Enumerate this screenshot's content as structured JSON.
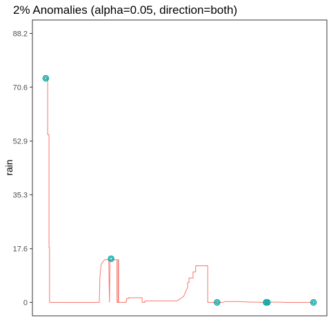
{
  "chart_data": {
    "type": "line",
    "title": "2% Anomalies (alpha=0.05, direction=both)",
    "xlabel": "",
    "ylabel": "rain",
    "ylim": [
      -4.4,
      92.6
    ],
    "xlim": [
      -0.05,
      1.05
    ],
    "yticks": [
      0,
      17.6,
      35.3,
      52.9,
      70.6,
      88.2
    ],
    "ytick_labels": [
      "0",
      "17.6",
      "35.3",
      "52.9",
      "70.6",
      "88.2"
    ],
    "grid": false,
    "legend": "none",
    "series": [
      {
        "color": "#f8766d",
        "x": [
          0.0,
          0.007,
          0.007,
          0.012,
          0.012,
          0.014,
          0.014,
          0.018,
          0.018,
          0.02,
          0.02,
          0.2,
          0.202,
          0.204,
          0.206,
          0.21,
          0.215,
          0.22,
          0.235,
          0.238,
          0.24,
          0.242,
          0.25,
          0.262,
          0.266,
          0.266,
          0.27,
          0.27,
          0.272,
          0.272,
          0.285,
          0.3,
          0.3,
          0.302,
          0.302,
          0.31,
          0.31,
          0.36,
          0.36,
          0.37,
          0.37,
          0.45,
          0.45,
          0.49,
          0.5,
          0.515,
          0.52,
          0.525,
          0.53,
          0.53,
          0.535,
          0.535,
          0.55,
          0.55,
          0.56,
          0.56,
          0.605,
          0.605,
          0.64,
          0.66,
          0.67,
          0.72,
          0.74,
          0.77,
          0.8,
          0.8,
          0.83,
          0.84,
          0.84,
          0.87,
          0.9,
          1.0
        ],
        "y": [
          73.5,
          73.5,
          55,
          55,
          18,
          18,
          0,
          0,
          0,
          0,
          0,
          0,
          8,
          10,
          12,
          13,
          13.5,
          14,
          14,
          0,
          14,
          14,
          14,
          14,
          14,
          0,
          0,
          14,
          14,
          0,
          0,
          0,
          0.5,
          0.5,
          1.3,
          1.3,
          1.5,
          1.5,
          0,
          0,
          0.5,
          0.5,
          0.5,
          0.5,
          1,
          2,
          3,
          4,
          5,
          6.5,
          6.5,
          8,
          8,
          10,
          10,
          12,
          12,
          0,
          0,
          0,
          0.3,
          0.3,
          0.2,
          0.1,
          0.1,
          0,
          0,
          0,
          0.1,
          0.1,
          0,
          0
        ]
      }
    ],
    "anomalies": {
      "color": "#00a9a9",
      "x": [
        0.0,
        0.244,
        0.64,
        0.823,
        0.828,
        1.0
      ],
      "y": [
        73.5,
        14.3,
        0,
        0,
        0,
        0
      ]
    }
  }
}
